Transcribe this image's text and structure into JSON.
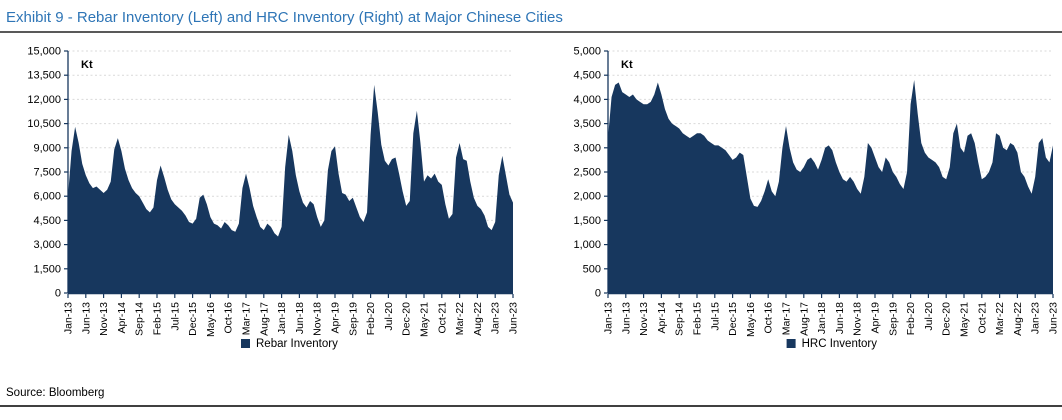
{
  "title": "Exhibit 9 - Rebar Inventory (Left) and HRC Inventory (Right) at Major Chinese Cities",
  "source": "Source: Bloomberg",
  "colors": {
    "series_fill": "#17375E",
    "axis": "#17375E",
    "grid": "#D9D9D9",
    "title_text": "#2E75B6",
    "title_rule": "#595959",
    "bottom_rule": "#404040",
    "text": "#000000"
  },
  "chart_data": [
    {
      "type": "area",
      "name": "rebar",
      "title": "Rebar Inventory at Major Chinese Cities",
      "unit": "Kt",
      "legend": "Rebar Inventory",
      "legend_position": "bottom",
      "grid": true,
      "frequency": "monthly",
      "x_start": "Jan-13",
      "x_end": "Jun-23",
      "x_tick_every": 5,
      "x_tick_labels": [
        "Jan-13",
        "Jun-13",
        "Nov-13",
        "Apr-14",
        "Sep-14",
        "Feb-15",
        "Jul-15",
        "Dec-15",
        "May-16",
        "Oct-16",
        "Mar-17",
        "Aug-17",
        "Jan-18",
        "Jun-18",
        "Nov-18",
        "Apr-19",
        "Sep-19",
        "Feb-20",
        "Jul-20",
        "Dec-20",
        "May-21",
        "Oct-21",
        "Mar-22",
        "Aug-22",
        "Jan-23",
        "Jun-23"
      ],
      "ylim": [
        0,
        15000
      ],
      "y_tick_step": 1500,
      "y_tick_labels": [
        "0",
        "1,500",
        "3,000",
        "4,500",
        "6,000",
        "7,500",
        "9,000",
        "10,500",
        "12,000",
        "13,500",
        "15,000"
      ],
      "values": [
        6000,
        8800,
        10300,
        9300,
        8000,
        7300,
        6800,
        6500,
        6600,
        6400,
        6200,
        6400,
        6900,
        8900,
        9600,
        8800,
        7700,
        7000,
        6500,
        6200,
        6000,
        5600,
        5200,
        5000,
        5300,
        7000,
        7900,
        7200,
        6400,
        5800,
        5500,
        5300,
        5100,
        4800,
        4400,
        4300,
        4600,
        5900,
        6100,
        5500,
        4700,
        4300,
        4200,
        4000,
        4400,
        4200,
        3900,
        3800,
        4300,
        6500,
        7400,
        6500,
        5400,
        4700,
        4100,
        3900,
        4300,
        4100,
        3700,
        3500,
        4100,
        7800,
        9800,
        8800,
        7300,
        6300,
        5600,
        5300,
        5700,
        5500,
        4700,
        4100,
        4500,
        7600,
        8800,
        9100,
        7400,
        6200,
        6100,
        5700,
        5900,
        5300,
        4700,
        4400,
        5000,
        9800,
        12900,
        11200,
        9200,
        8200,
        7900,
        8300,
        8400,
        7400,
        6300,
        5400,
        5700,
        9900,
        11300,
        9300,
        6900,
        7300,
        7100,
        7400,
        6900,
        6700,
        5500,
        4600,
        4900,
        8400,
        9300,
        8300,
        8200,
        6900,
        5900,
        5400,
        5200,
        4800,
        4100,
        3900,
        4400,
        7300,
        8500,
        7300,
        6100,
        5600
      ]
    },
    {
      "type": "area",
      "name": "hrc",
      "title": "HRC Inventory at Major Chinese Cities",
      "unit": "Kt",
      "legend": "HRC Inventory",
      "legend_position": "bottom",
      "grid": true,
      "frequency": "monthly",
      "x_start": "Jan-13",
      "x_end": "Jun-23",
      "x_tick_every": 5,
      "x_tick_labels": [
        "Jan-13",
        "Jun-13",
        "Nov-13",
        "Apr-14",
        "Sep-14",
        "Feb-15",
        "Jul-15",
        "Dec-15",
        "May-16",
        "Oct-16",
        "Mar-17",
        "Aug-17",
        "Jan-18",
        "Jun-18",
        "Nov-18",
        "Apr-19",
        "Sep-19",
        "Feb-20",
        "Jul-20",
        "Dec-20",
        "May-21",
        "Oct-21",
        "Mar-22",
        "Aug-22",
        "Jan-23",
        "Jun-23"
      ],
      "ylim": [
        0,
        5000
      ],
      "y_tick_step": 500,
      "y_tick_labels": [
        "0",
        "500",
        "1,000",
        "1,500",
        "2,000",
        "2,500",
        "3,000",
        "3,500",
        "4,000",
        "4,500",
        "5,000"
      ],
      "values": [
        3200,
        4050,
        4300,
        4350,
        4150,
        4100,
        4050,
        4100,
        4000,
        3950,
        3900,
        3900,
        3950,
        4100,
        4350,
        4100,
        3800,
        3600,
        3500,
        3450,
        3400,
        3300,
        3250,
        3200,
        3250,
        3300,
        3300,
        3250,
        3150,
        3100,
        3050,
        3050,
        3000,
        2950,
        2850,
        2750,
        2800,
        2900,
        2850,
        2400,
        1950,
        1800,
        1780,
        1900,
        2100,
        2350,
        2100,
        2000,
        2300,
        3000,
        3450,
        3000,
        2700,
        2550,
        2500,
        2600,
        2750,
        2800,
        2700,
        2550,
        2750,
        3000,
        3050,
        2950,
        2700,
        2500,
        2350,
        2300,
        2400,
        2300,
        2150,
        2050,
        2400,
        3100,
        3000,
        2800,
        2600,
        2500,
        2800,
        2700,
        2500,
        2400,
        2250,
        2150,
        2500,
        3900,
        4400,
        3700,
        3100,
        2900,
        2800,
        2750,
        2700,
        2600,
        2400,
        2350,
        2600,
        3300,
        3500,
        3000,
        2900,
        3250,
        3300,
        3100,
        2700,
        2350,
        2400,
        2500,
        2700,
        3300,
        3250,
        3000,
        2950,
        3100,
        3050,
        2900,
        2500,
        2400,
        2200,
        2050,
        2400,
        3100,
        3200,
        2800,
        2700,
        3050
      ]
    }
  ]
}
